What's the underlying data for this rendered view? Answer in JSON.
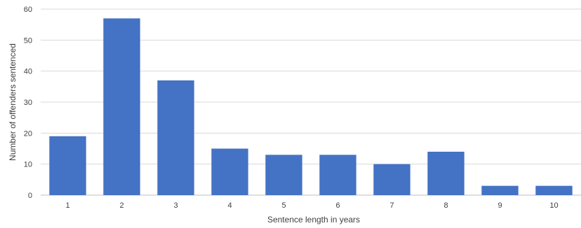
{
  "chart_data": {
    "type": "bar",
    "categories": [
      "1",
      "2",
      "3",
      "4",
      "5",
      "6",
      "7",
      "8",
      "9",
      "10"
    ],
    "values": [
      19,
      57,
      37,
      15,
      13,
      13,
      10,
      14,
      3,
      3
    ],
    "xlabel": "Sentence length in years",
    "ylabel": "Number of offenders sentenced",
    "ylim": [
      0,
      60
    ],
    "yticks": [
      0,
      10,
      20,
      30,
      40,
      50,
      60
    ],
    "grid": true,
    "colors": {
      "bar": "#4472c4",
      "grid": "#d9d9d9",
      "text": "#404040"
    }
  }
}
